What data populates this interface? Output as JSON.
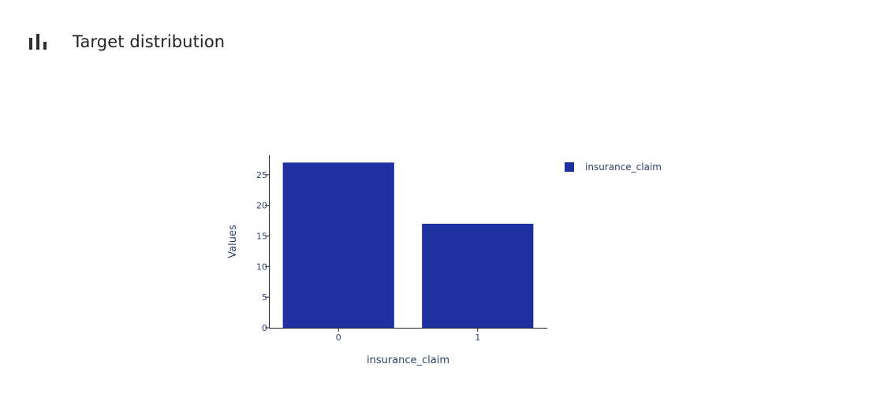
{
  "header": {
    "title": "Target distribution",
    "icon": "bar-chart-icon"
  },
  "chart_data": {
    "type": "bar",
    "categories": [
      "0",
      "1"
    ],
    "series": [
      {
        "name": "insurance_claim",
        "values": [
          27,
          17
        ],
        "color": "#1f30a0"
      }
    ],
    "xlabel": "insurance_claim",
    "ylabel": "Values",
    "ylim": [
      0,
      28.2
    ],
    "yticks": [
      0,
      5,
      10,
      15,
      20,
      25
    ],
    "grid": false,
    "legend": "top-right"
  }
}
